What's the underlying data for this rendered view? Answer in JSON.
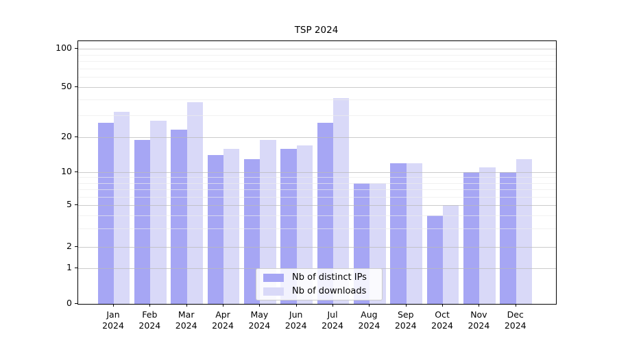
{
  "chart_data": {
    "type": "bar",
    "title": "TSP 2024",
    "categories": [
      "Jan 2024",
      "Feb 2024",
      "Mar 2024",
      "Apr 2024",
      "May 2024",
      "Jun 2024",
      "Jul 2024",
      "Aug 2024",
      "Sep 2024",
      "Oct 2024",
      "Nov 2024",
      "Dec 2024"
    ],
    "series": [
      {
        "name": "Nb of distinct IPs",
        "color": "#a6a6f4",
        "values": [
          26,
          19,
          23,
          14,
          13,
          16,
          26,
          8,
          12,
          4,
          10,
          10
        ]
      },
      {
        "name": "Nb of downloads",
        "color": "#d9d9f8",
        "values": [
          32,
          27,
          38,
          16,
          19,
          17,
          41,
          8,
          12,
          5,
          11,
          13
        ]
      }
    ],
    "yscale": "log-like with zero baseline",
    "yticks": [
      0,
      1,
      2,
      5,
      10,
      20,
      50,
      100
    ],
    "minor_yticks": [
      3,
      4,
      6,
      7,
      8,
      9,
      30,
      40,
      60,
      70,
      80,
      90
    ],
    "ylim": [
      0,
      110
    ],
    "xlabel": "",
    "ylabel": "",
    "grid": true,
    "legend_position": "lower center"
  }
}
